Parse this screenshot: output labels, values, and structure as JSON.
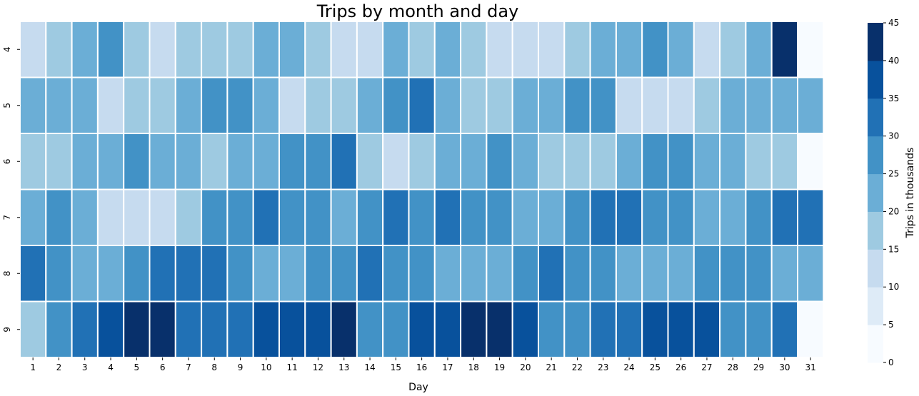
{
  "chart_data": {
    "type": "heatmap",
    "title": "Trips by month and day",
    "xlabel": "Day",
    "ylabel": "",
    "x_categories": [
      "1",
      "2",
      "3",
      "4",
      "5",
      "6",
      "7",
      "8",
      "9",
      "10",
      "11",
      "12",
      "13",
      "14",
      "15",
      "16",
      "17",
      "18",
      "19",
      "20",
      "21",
      "22",
      "23",
      "24",
      "25",
      "26",
      "27",
      "28",
      "29",
      "30",
      "31"
    ],
    "y_categories": [
      "4",
      "5",
      "6",
      "7",
      "8",
      "9"
    ],
    "values": [
      [
        13,
        18,
        22,
        27,
        17,
        13,
        17,
        17,
        17,
        21,
        21,
        17,
        13,
        13,
        21,
        17,
        21,
        17,
        13,
        13,
        13,
        17,
        21,
        21,
        27,
        21,
        13,
        17,
        21,
        41,
        0
      ],
      [
        22,
        22,
        22,
        13,
        17,
        18,
        21,
        27,
        26,
        21,
        13,
        17,
        18,
        22,
        27,
        32,
        21,
        17,
        18,
        21,
        21,
        27,
        27,
        13,
        12,
        13,
        17,
        21,
        21,
        21,
        21
      ],
      [
        18,
        17,
        21,
        21,
        27,
        22,
        21,
        17,
        21,
        21,
        27,
        27,
        32,
        17,
        13,
        17,
        21,
        21,
        27,
        21,
        17,
        17,
        17,
        21,
        27,
        27,
        21,
        21,
        17,
        17,
        0
      ],
      [
        21,
        26,
        21,
        13,
        12,
        13,
        17,
        26,
        26,
        32,
        27,
        26,
        21,
        26,
        32,
        26,
        32,
        26,
        26,
        21,
        21,
        26,
        32,
        32,
        26,
        26,
        21,
        21,
        26,
        32,
        32
      ],
      [
        32,
        26,
        21,
        21,
        26,
        32,
        32,
        32,
        26,
        21,
        21,
        26,
        26,
        32,
        26,
        26,
        21,
        21,
        21,
        26,
        32,
        26,
        26,
        21,
        21,
        21,
        26,
        26,
        26,
        21,
        21
      ],
      [
        17,
        26,
        32,
        38,
        45,
        45,
        32,
        32,
        32,
        38,
        38,
        38,
        45,
        26,
        26,
        38,
        38,
        45,
        45,
        38,
        26,
        26,
        32,
        32,
        38,
        38,
        38,
        26,
        26,
        32,
        0
      ]
    ],
    "colorbar": {
      "label": "Trips in thousands",
      "min": 0,
      "max": 45,
      "ticks": [
        "0",
        "5",
        "10",
        "15",
        "20",
        "25",
        "30",
        "35",
        "40",
        "45"
      ],
      "colors": [
        "#f7fbff",
        "#deebf7",
        "#c6dbef",
        "#9ecae1",
        "#6baed6",
        "#4292c6",
        "#2171b5",
        "#08519c",
        "#08306b"
      ]
    },
    "grid": false,
    "legend": "right"
  }
}
